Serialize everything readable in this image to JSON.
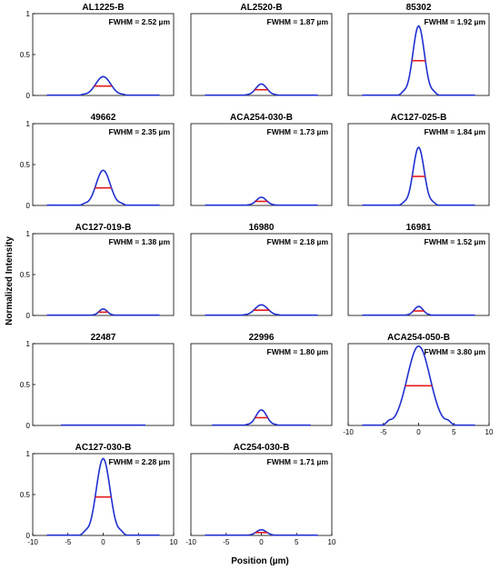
{
  "figure": {
    "ylabel": "Normalized Intensity",
    "xlabel": "Position (µm)"
  },
  "colors": {
    "curve": "#1f2fcf",
    "fwhm_line": "#e31a1c",
    "axis": "#000000"
  },
  "chart_data": [
    {
      "type": "line",
      "title": "AL1225-B",
      "annotation": "FWHM = 2.52 µm",
      "peak": 0.23,
      "fwhm": 2.52,
      "range": 8,
      "xlim": [
        -10,
        10
      ],
      "ylim": [
        0,
        1
      ],
      "yticks": [
        0,
        0.5,
        1
      ],
      "xticks": [],
      "grid": false
    },
    {
      "type": "line",
      "title": "AL2520-B",
      "annotation": "FWHM = 1.87 µm",
      "peak": 0.14,
      "fwhm": 1.87,
      "range": 8,
      "xlim": [
        -10,
        10
      ],
      "ylim": [
        0,
        1
      ],
      "yticks": [],
      "xticks": [],
      "grid": false
    },
    {
      "type": "line",
      "title": "85302",
      "annotation": "FWHM = 1.92 µm",
      "peak": 0.85,
      "fwhm": 1.92,
      "range": 8,
      "xlim": [
        -10,
        10
      ],
      "ylim": [
        0,
        1
      ],
      "yticks": [],
      "xticks": [],
      "grid": false
    },
    {
      "type": "line",
      "title": "49662",
      "annotation": "FWHM = 2.35 µm",
      "peak": 0.43,
      "fwhm": 2.35,
      "range": 8,
      "xlim": [
        -10,
        10
      ],
      "ylim": [
        0,
        1
      ],
      "yticks": [
        0,
        0.5,
        1
      ],
      "xticks": [],
      "grid": false
    },
    {
      "type": "line",
      "title": "ACA254-030-B",
      "annotation": "FWHM = 1.73 µm",
      "peak": 0.1,
      "fwhm": 1.73,
      "range": 8,
      "xlim": [
        -10,
        10
      ],
      "ylim": [
        0,
        1
      ],
      "yticks": [],
      "xticks": [],
      "grid": false
    },
    {
      "type": "line",
      "title": "AC127-025-B",
      "annotation": "FWHM = 1.84 µm",
      "peak": 0.71,
      "fwhm": 1.84,
      "range": 8,
      "xlim": [
        -10,
        10
      ],
      "ylim": [
        0,
        1
      ],
      "yticks": [],
      "xticks": [],
      "grid": false
    },
    {
      "type": "line",
      "title": "AC127-019-B",
      "annotation": "FWHM = 1.38 µm",
      "peak": 0.08,
      "fwhm": 1.38,
      "range": 8,
      "xlim": [
        -10,
        10
      ],
      "ylim": [
        0,
        1
      ],
      "yticks": [
        0,
        0.5,
        1
      ],
      "xticks": [],
      "grid": false
    },
    {
      "type": "line",
      "title": "16980",
      "annotation": "FWHM = 2.18 µm",
      "peak": 0.13,
      "fwhm": 2.18,
      "range": 8,
      "xlim": [
        -10,
        10
      ],
      "ylim": [
        0,
        1
      ],
      "yticks": [],
      "xticks": [],
      "grid": false
    },
    {
      "type": "line",
      "title": "16981",
      "annotation": "FWHM = 1.52 µm",
      "peak": 0.11,
      "fwhm": 1.52,
      "range": 8,
      "xlim": [
        -10,
        10
      ],
      "ylim": [
        0,
        1
      ],
      "yticks": [],
      "xticks": [],
      "grid": false
    },
    {
      "type": "line",
      "title": "22487",
      "annotation": "",
      "peak": 0.0,
      "fwhm": 0,
      "range": 6,
      "xlim": [
        -10,
        10
      ],
      "ylim": [
        0,
        1
      ],
      "yticks": [
        0,
        0.5,
        1
      ],
      "xticks": [],
      "grid": false
    },
    {
      "type": "line",
      "title": "22996",
      "annotation": "FWHM = 1.80 µm",
      "peak": 0.19,
      "fwhm": 1.8,
      "range": 7,
      "xlim": [
        -10,
        10
      ],
      "ylim": [
        0,
        1
      ],
      "yticks": [],
      "xticks": [],
      "grid": false
    },
    {
      "type": "line",
      "title": "ACA254-050-B",
      "annotation": "FWHM = 3.80 µm",
      "peak": 0.97,
      "fwhm": 3.8,
      "range": 8,
      "xlim": [
        -10,
        10
      ],
      "ylim": [
        0,
        1
      ],
      "yticks": [],
      "xticks": [
        -10,
        -5,
        0,
        5,
        10
      ],
      "grid": false
    },
    {
      "type": "line",
      "title": "AC127-030-B",
      "annotation": "FWHM = 2.28 µm",
      "peak": 0.94,
      "fwhm": 2.28,
      "range": 8,
      "xlim": [
        -10,
        10
      ],
      "ylim": [
        0,
        1
      ],
      "yticks": [
        0,
        0.5,
        1
      ],
      "xticks": [
        -10,
        -5,
        0,
        5,
        10
      ],
      "grid": false
    },
    {
      "type": "line",
      "title": "AC254-030-B",
      "annotation": "FWHM = 1.71 µm",
      "peak": 0.07,
      "fwhm": 1.71,
      "range": 8,
      "xlim": [
        -10,
        10
      ],
      "ylim": [
        0,
        1
      ],
      "yticks": [],
      "xticks": [
        -10,
        -5,
        0,
        5,
        10
      ],
      "grid": false
    }
  ]
}
